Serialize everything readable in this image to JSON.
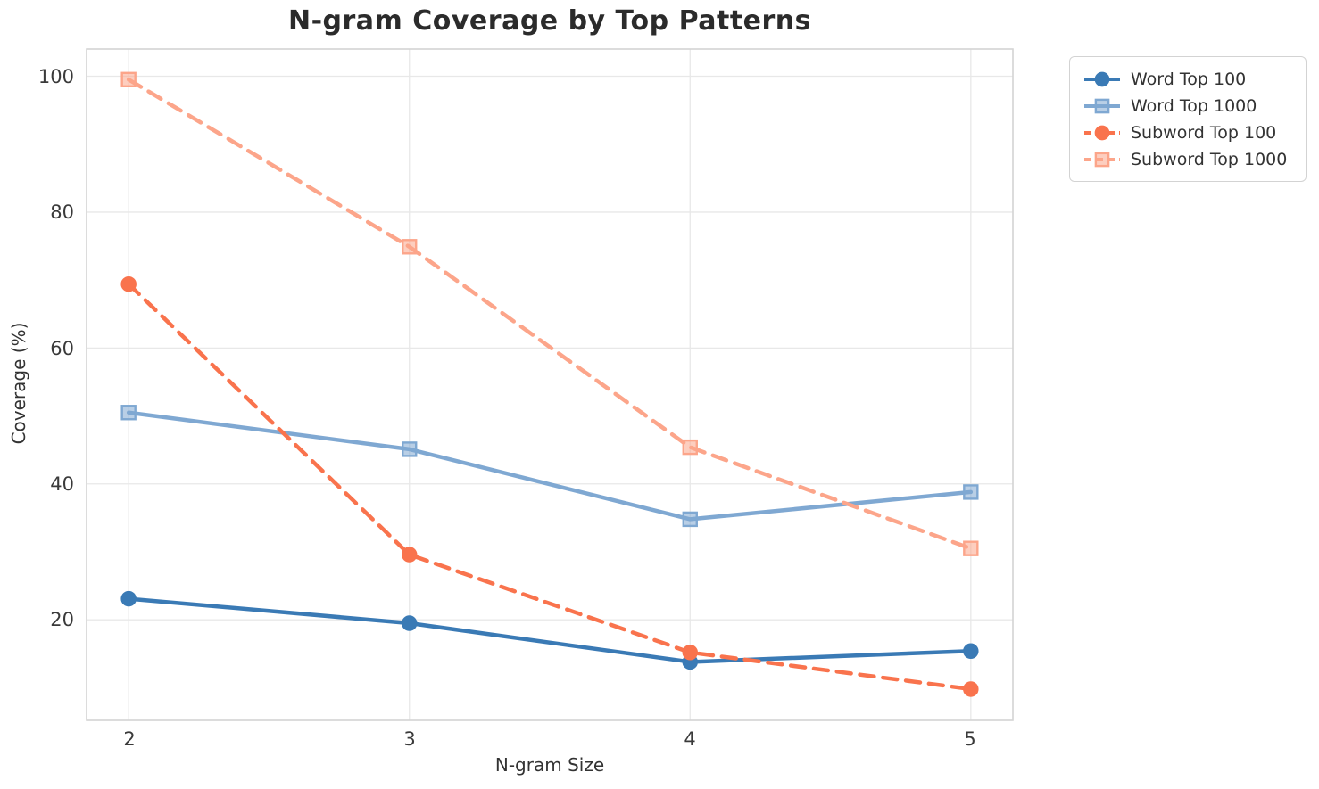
{
  "chart_data": {
    "type": "line",
    "title": "N-gram Coverage by Top Patterns",
    "xlabel": "N-gram Size",
    "ylabel": "Coverage (%)",
    "x": [
      2,
      3,
      4,
      5
    ],
    "xticks": [
      "2",
      "3",
      "4",
      "5"
    ],
    "xtick_values": [
      2,
      3,
      4,
      5
    ],
    "yticks": [
      "20",
      "40",
      "60",
      "80",
      "100"
    ],
    "ytick_values": [
      20,
      40,
      60,
      80,
      100
    ],
    "xlim": [
      1.85,
      5.15
    ],
    "ylim": [
      5.2,
      104
    ],
    "grid": true,
    "legend_position": "outside upper right",
    "series": [
      {
        "name": "Word Top 100",
        "values": [
          23.1,
          19.5,
          13.8,
          15.4
        ],
        "color": "#3a7ab5",
        "line_style": "solid",
        "marker": "circle"
      },
      {
        "name": "Word Top 1000",
        "values": [
          50.5,
          45.1,
          34.8,
          38.8
        ],
        "color": "#7fa8d2",
        "line_style": "solid",
        "marker": "square"
      },
      {
        "name": "Subword Top 100",
        "values": [
          69.4,
          29.6,
          15.2,
          9.8
        ],
        "color": "#f9734d",
        "line_style": "dashed",
        "marker": "circle"
      },
      {
        "name": "Subword Top 1000",
        "values": [
          99.5,
          74.9,
          45.4,
          30.5
        ],
        "color": "#fca58a",
        "line_style": "dashed",
        "marker": "square"
      }
    ],
    "colors": {
      "grid": "#e8e8e8",
      "spine": "#d4d4d4",
      "title_text": "#2b2b2b",
      "tick_text": "#3a3a3a"
    }
  }
}
